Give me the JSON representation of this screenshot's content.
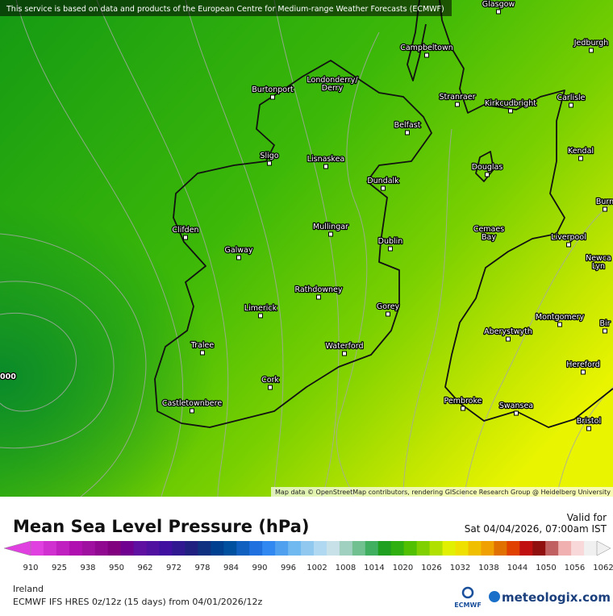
{
  "header": {
    "notice": "This service is based on data and products of the European Centre for Medium-range Weather Forecasts (ECMWF)",
    "attribution": "Map data © OpenStreetMap contributors, rendering GIScience Research Group @ Heidelberg University"
  },
  "map": {
    "pressure_label": "000",
    "places": [
      "Glasgow",
      "Campbeltown",
      "Jedburgh",
      "Burtonport",
      "Londonderry/\nDerry",
      "Stranraer",
      "Kirkcudbright",
      "Carlisle",
      "Belfast",
      "Sligo",
      "Lisnaskea",
      "Dundalk",
      "Douglas",
      "Kendal",
      "Burn",
      "Clifden",
      "Mullingar",
      "Dublin",
      "Cemaes\nBay",
      "Liverpool",
      "Galway",
      "Newca\nLyn",
      "Rathdowney",
      "Limerick",
      "Gorey",
      "Montgomery",
      "Aberystwyth",
      "Bir",
      "Tralee",
      "Waterford",
      "Hereford",
      "Cork",
      "Pembroke",
      "Swansea",
      "Castletownbere",
      "Bristol"
    ]
  },
  "legend": {
    "title": "Mean Sea Level Pressure (hPa)",
    "valid_label": "Valid for",
    "valid_time": "Sat 04/04/2026, 07:00am IST",
    "ticks": [
      910,
      925,
      938,
      950,
      962,
      972,
      978,
      984,
      990,
      996,
      1002,
      1008,
      1014,
      1020,
      1026,
      1032,
      1038,
      1044,
      1050,
      1056,
      1062
    ],
    "colors": [
      "#e040e0",
      "#d030d0",
      "#c020c0",
      "#b010b0",
      "#a010a0",
      "#900890",
      "#800080",
      "#700090",
      "#6010a0",
      "#5010a0",
      "#4010a0",
      "#301890",
      "#202080",
      "#103080",
      "#004090",
      "#0050a0",
      "#1060c0",
      "#2070e0",
      "#3088f0",
      "#50a0f0",
      "#70b8f0",
      "#90c8f0",
      "#b0d8f0",
      "#c8e0e8",
      "#a0d0c0",
      "#70c090",
      "#40b060",
      "#20a020",
      "#30b010",
      "#50c000",
      "#80d000",
      "#b0e000",
      "#e0f000",
      "#f0e000",
      "#f0c000",
      "#f0a000",
      "#e07000",
      "#e04000",
      "#c01010",
      "#901010",
      "#c06060",
      "#f0b0b0",
      "#f8d8d8",
      "#f0f0f0"
    ]
  },
  "footer": {
    "region": "Ireland",
    "model": "ECMWF IFS HRES 0z/12z (15 days) from 04/01/2026/12z",
    "ecmwf": "ECMWF",
    "brand": "meteologix.com"
  }
}
